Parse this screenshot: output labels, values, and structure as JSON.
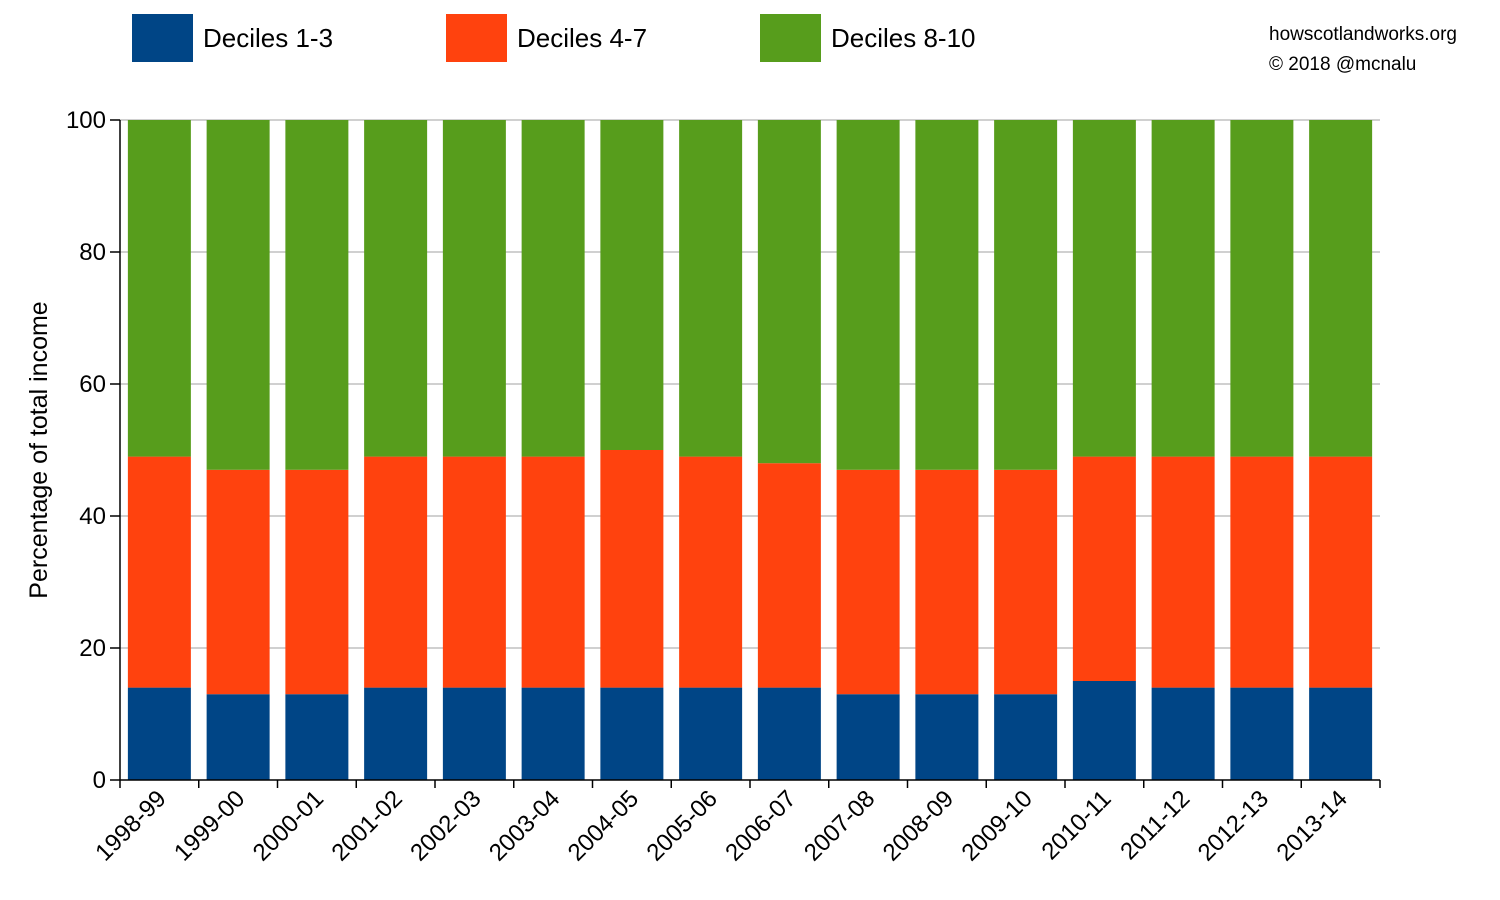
{
  "chart_data": {
    "type": "bar",
    "stacked": true,
    "categories": [
      "1998-99",
      "1999-00",
      "2000-01",
      "2001-02",
      "2002-03",
      "2003-04",
      "2004-05",
      "2005-06",
      "2006-07",
      "2007-08",
      "2008-09",
      "2009-10",
      "2010-11",
      "2011-12",
      "2012-13",
      "2013-14"
    ],
    "series": [
      {
        "name": "Deciles 1-3",
        "color": "#004586",
        "values": [
          14,
          13,
          13,
          14,
          14,
          14,
          14,
          14,
          14,
          13,
          13,
          13,
          15,
          14,
          14,
          14
        ]
      },
      {
        "name": "Deciles 4-7",
        "color": "#ff420e",
        "values": [
          35,
          34,
          34,
          35,
          35,
          35,
          36,
          35,
          34,
          34,
          34,
          34,
          34,
          35,
          35,
          35
        ]
      },
      {
        "name": "Deciles 8-10",
        "color": "#579d1c",
        "values": [
          51,
          53,
          53,
          51,
          51,
          51,
          50,
          51,
          52,
          53,
          53,
          53,
          51,
          51,
          51,
          51
        ]
      }
    ],
    "ylabel": "Percentage of total income",
    "xlabel": "",
    "ylim": [
      0,
      100
    ],
    "yticks": [
      0,
      20,
      40,
      60,
      80,
      100
    ],
    "grid": true,
    "legend_position": "top"
  },
  "credit": {
    "line1": "howscotlandworks.org",
    "line2": "© 2018  @mcnalu"
  }
}
